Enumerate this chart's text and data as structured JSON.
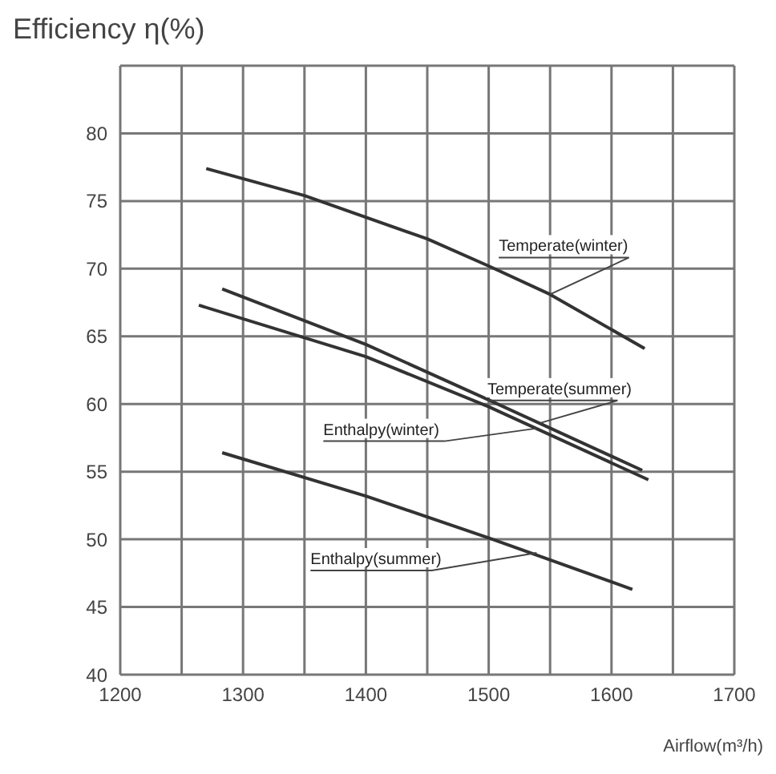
{
  "chart_data": {
    "type": "line",
    "ylabel": "Efficiency η(%)",
    "xlabel": "Airflow(m³/h)",
    "xlim": [
      1200,
      1700
    ],
    "xticks": [
      1200,
      {
        "value": 1250,
        "label": null
      },
      1300,
      {
        "value": 1350,
        "label": null
      },
      1400,
      {
        "value": 1450,
        "label": null
      },
      1500,
      {
        "value": 1550,
        "label": null
      },
      1600,
      {
        "value": 1650,
        "label": null
      },
      1700
    ],
    "ylim": [
      40,
      85
    ],
    "yticks": [
      40,
      45,
      50,
      55,
      60,
      65,
      70,
      75,
      80,
      {
        "value": 85,
        "label": null
      }
    ],
    "grid": true,
    "marker": "none",
    "line_style": "solid",
    "series": [
      {
        "color": "#333333",
        "x": [
          1270,
          1350,
          1450,
          1500,
          1550,
          1627
        ],
        "values": [
          77.4,
          75.4,
          72.2,
          70.2,
          68.1,
          64.1
        ]
      },
      {
        "color": "#333333",
        "x": [
          1283,
          1400,
          1500,
          1625
        ],
        "values": [
          68.5,
          64.4,
          60.3,
          55.1
        ]
      },
      {
        "color": "#333333",
        "x": [
          1264,
          1400,
          1500,
          1630
        ],
        "values": [
          67.3,
          63.5,
          59.8,
          54.4
        ]
      },
      {
        "color": "#333333",
        "x": [
          1283,
          1400,
          1500,
          1617
        ],
        "values": [
          56.4,
          53.2,
          50.1,
          46.3
        ]
      }
    ],
    "annotations": [
      {
        "text": "Temperate(winter)",
        "x": 1550,
        "y": 68.1
      },
      {
        "text": "Temperate(summer)",
        "x": 1542,
        "y": 58.6
      },
      {
        "text": "Enthalpy(winter)",
        "x": 1539,
        "y": 58.2
      },
      {
        "text": "Enthalpy(summer)",
        "x": 1539,
        "y": 49.0
      }
    ]
  }
}
